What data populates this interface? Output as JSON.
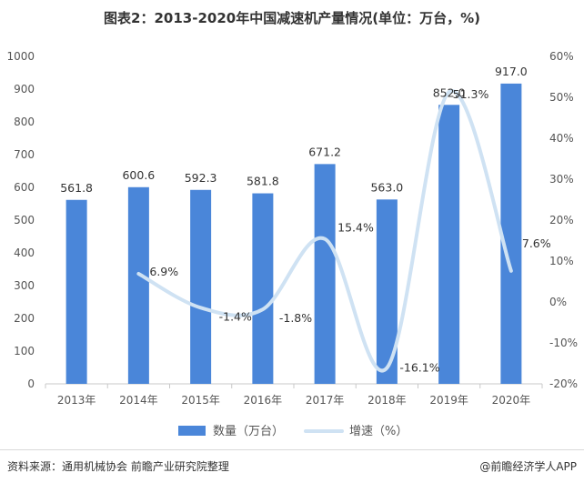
{
  "chart_data": {
    "type": "bar+line",
    "title": "图表2：2013-2020年中国减速机产量情况(单位：万台，%)",
    "categories": [
      "2013年",
      "2014年",
      "2015年",
      "2016年",
      "2017年",
      "2018年",
      "2019年",
      "2020年"
    ],
    "series": [
      {
        "name": "数量（万台）",
        "type": "bar",
        "axis": "left",
        "values": [
          561.8,
          600.6,
          592.3,
          581.8,
          671.2,
          563.0,
          852.0,
          917.0
        ],
        "labels": [
          "561.8",
          "600.6",
          "592.3",
          "581.8",
          "671.2",
          "563.0",
          "852.0",
          "917.0"
        ]
      },
      {
        "name": "增速（%）",
        "type": "line",
        "axis": "right",
        "values": [
          null,
          6.9,
          -1.4,
          -1.8,
          15.4,
          -16.1,
          51.3,
          7.6
        ],
        "labels": [
          "",
          "6.9%",
          "-1.4%",
          "-1.8%",
          "15.4%",
          "-16.1%",
          "51.3%",
          "7.6%"
        ]
      }
    ],
    "y_left": {
      "min": 0,
      "max": 1000,
      "ticks": [
        "0",
        "100",
        "200",
        "300",
        "400",
        "500",
        "600",
        "700",
        "800",
        "900",
        "1000"
      ]
    },
    "y_right": {
      "min": -20,
      "max": 60,
      "ticks": [
        "-20%",
        "-10%",
        "0%",
        "10%",
        "20%",
        "30%",
        "40%",
        "50%",
        "60%"
      ]
    },
    "legend_position": "bottom",
    "grid": false
  },
  "colors": {
    "bar": "#4a86d9",
    "line": "#cfe2f3",
    "axis": "#c8c8c8"
  },
  "footer": {
    "source": "资料来源：通用机械协会 前瞻产业研究院整理",
    "brand": "@前瞻经济学人APP"
  }
}
